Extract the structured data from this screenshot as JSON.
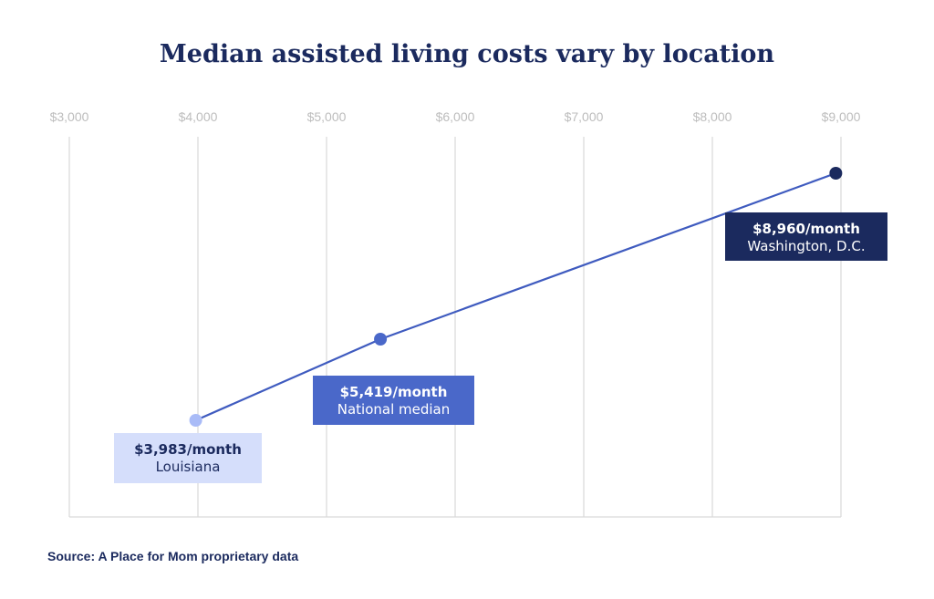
{
  "chart_data": {
    "type": "line",
    "title": "Median assisted living costs vary by location",
    "xlabel": "",
    "ylabel": "",
    "xlim": [
      3000,
      9000
    ],
    "x_ticks": [
      "$3,000",
      "$4,000",
      "$5,000",
      "$6,000",
      "$7,000",
      "$8,000",
      "$9,000"
    ],
    "x_tick_values": [
      3000,
      4000,
      5000,
      6000,
      7000,
      8000,
      9000
    ],
    "grid": true,
    "points": [
      {
        "x": 3983,
        "value_label": "$3,983/month",
        "location": "Louisiana",
        "color": "#a9bbf7",
        "box_color": "#d5defb",
        "text_color": "#1b2a5e"
      },
      {
        "x": 5419,
        "value_label": "$5,419/month",
        "location": "National median",
        "color": "#4a68c9",
        "box_color": "#4a68c9",
        "text_color": "#ffffff"
      },
      {
        "x": 8960,
        "value_label": "$8,960/month",
        "location": "Washington, D.C.",
        "color": "#1b2a5e",
        "box_color": "#1b2a5e",
        "text_color": "#ffffff"
      }
    ],
    "line_color": "#3f5bbf",
    "grid_color": "#d9d9d9"
  },
  "source": "Source: A Place for Mom proprietary data"
}
